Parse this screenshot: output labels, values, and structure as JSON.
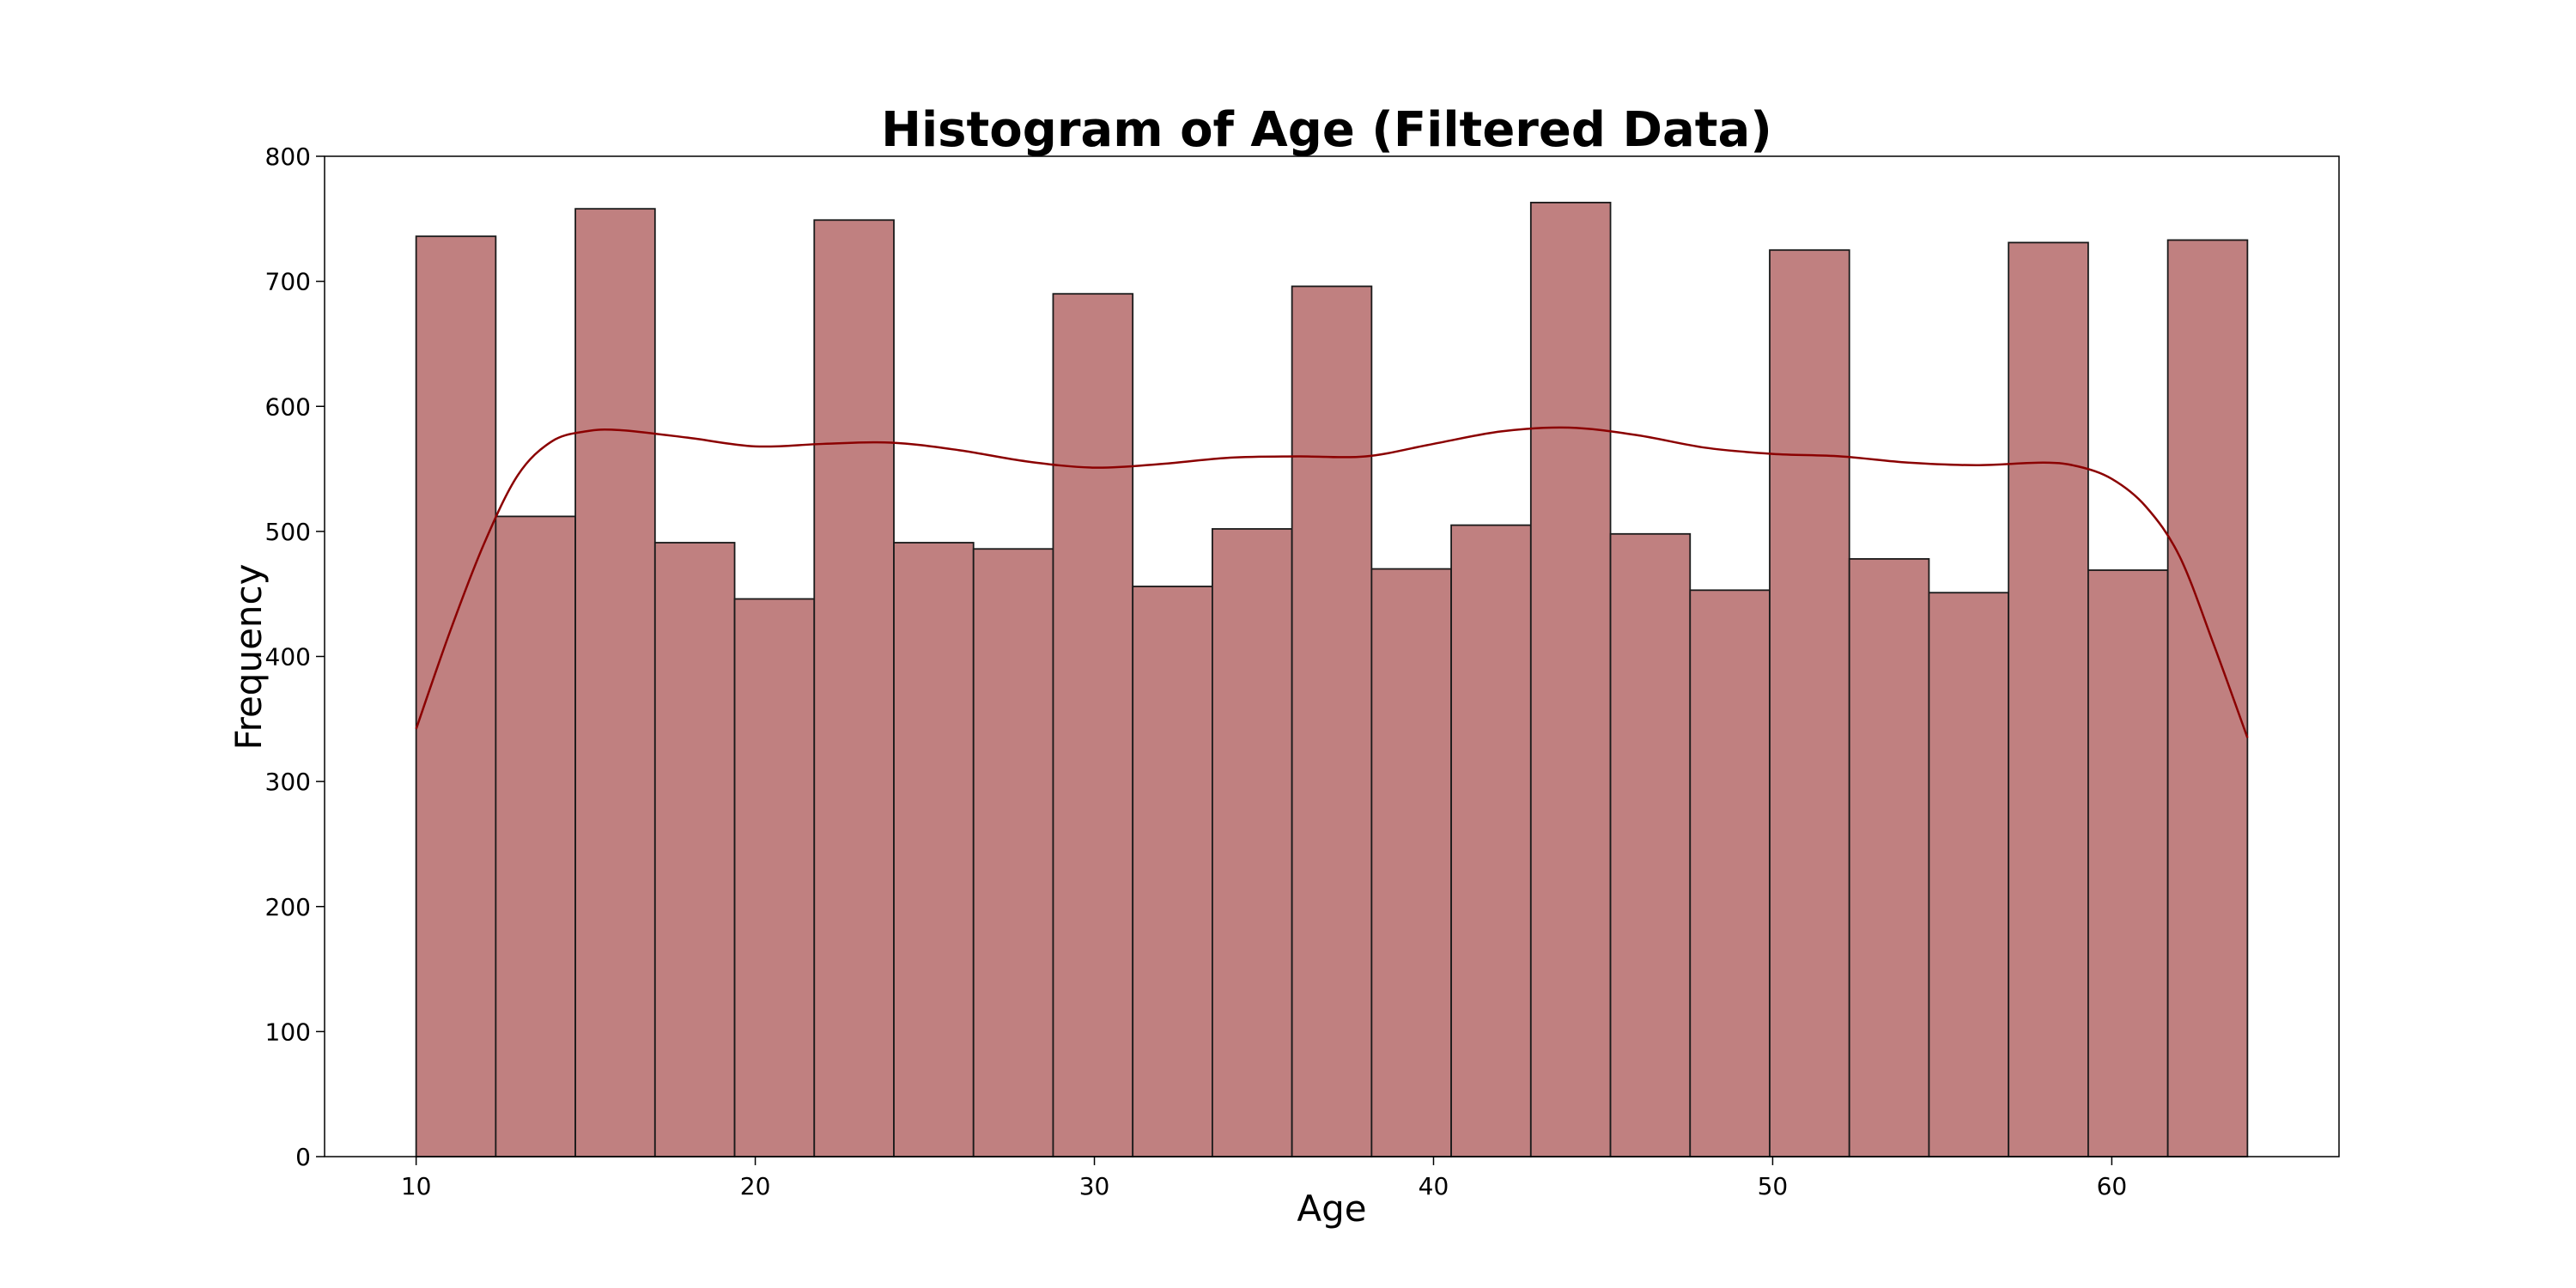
{
  "chart_data": {
    "type": "bar",
    "subtype": "histogram-with-kde",
    "title": "Histogram of Age (Filtered Data)",
    "xlabel": "Age",
    "ylabel": "Frequency",
    "xlim": [
      7.3,
      66.7
    ],
    "ylim": [
      0,
      800
    ],
    "xticks": [
      10,
      20,
      30,
      40,
      50,
      60
    ],
    "yticks": [
      0,
      100,
      200,
      300,
      400,
      500,
      600,
      700,
      800
    ],
    "grid": false,
    "bins": {
      "x_start": 10,
      "x_end": 64,
      "values": [
        736,
        512,
        758,
        491,
        446,
        749,
        491,
        486,
        690,
        456,
        502,
        696,
        470,
        505,
        763,
        498,
        453,
        725,
        478,
        451,
        731,
        469,
        733
      ]
    },
    "kde": {
      "x": [
        10,
        11,
        12,
        13,
        14,
        15,
        16,
        18,
        20,
        22,
        24,
        26,
        28,
        30,
        32,
        34,
        36,
        38,
        40,
        42,
        44,
        46,
        48,
        50,
        52,
        54,
        56,
        58,
        59,
        60,
        61,
        62,
        63,
        64
      ],
      "y": [
        342,
        420,
        490,
        545,
        572,
        580,
        581,
        575,
        568,
        570,
        571,
        565,
        556,
        551,
        554,
        559,
        560,
        560,
        570,
        580,
        583,
        577,
        567,
        562,
        560,
        555,
        553,
        555,
        552,
        542,
        520,
        480,
        410,
        335
      ]
    },
    "colors": {
      "bar_fill": "#c08080",
      "bar_edge": "#1a1a1a",
      "kde_line": "#8b0000",
      "axes": "#000000"
    }
  }
}
